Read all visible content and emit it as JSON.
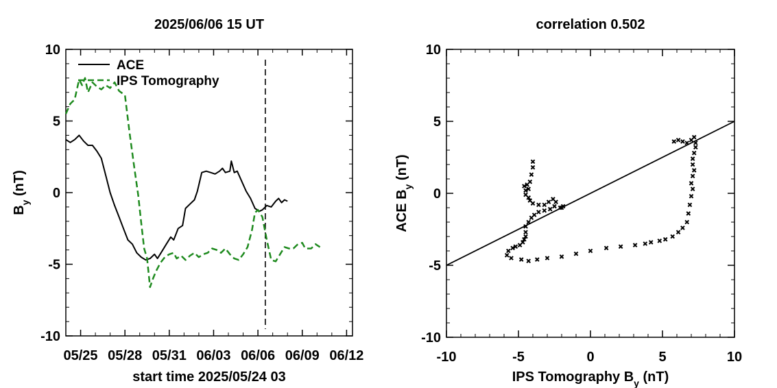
{
  "chart_data": [
    {
      "type": "line",
      "title": "2025/06/06 15 UT",
      "xlabel": "start time 2025/05/24 03",
      "ylabel_main": "B",
      "ylabel_sub": "y",
      "ylabel_tail": " (nT)",
      "xlim": [
        0,
        19.4
      ],
      "ylim": [
        -10,
        10
      ],
      "x_ticks": [
        {
          "x": 1,
          "label": "05/25"
        },
        {
          "x": 4,
          "label": "05/28"
        },
        {
          "x": 7,
          "label": "05/31"
        },
        {
          "x": 10,
          "label": "06/03"
        },
        {
          "x": 13,
          "label": "06/06"
        },
        {
          "x": 16,
          "label": "06/09"
        },
        {
          "x": 19,
          "label": "06/12"
        }
      ],
      "y_ticks": [
        -10,
        -5,
        0,
        5,
        10
      ],
      "legend": [
        "ACE",
        "IPS Tomography"
      ],
      "legend_position": "top-left",
      "vline_x": 13.5,
      "series": [
        {
          "name": "ACE",
          "style": "solid",
          "color": "#000000",
          "points": [
            [
              0,
              3.7
            ],
            [
              0.3,
              3.5
            ],
            [
              0.6,
              3.7
            ],
            [
              0.9,
              4.0
            ],
            [
              1.2,
              3.6
            ],
            [
              1.5,
              3.3
            ],
            [
              1.8,
              3.3
            ],
            [
              2.1,
              2.9
            ],
            [
              2.4,
              2.4
            ],
            [
              2.7,
              1.2
            ],
            [
              3.0,
              0.0
            ],
            [
              3.3,
              -0.9
            ],
            [
              3.6,
              -1.7
            ],
            [
              3.9,
              -2.5
            ],
            [
              4.2,
              -3.3
            ],
            [
              4.5,
              -3.6
            ],
            [
              4.8,
              -4.2
            ],
            [
              5.1,
              -4.5
            ],
            [
              5.4,
              -4.7
            ],
            [
              5.7,
              -4.6
            ],
            [
              6.0,
              -4.3
            ],
            [
              6.2,
              -4.6
            ],
            [
              6.5,
              -4.1
            ],
            [
              6.8,
              -3.6
            ],
            [
              7.1,
              -3.1
            ],
            [
              7.3,
              -3.3
            ],
            [
              7.6,
              -2.5
            ],
            [
              7.9,
              -2.3
            ],
            [
              8.1,
              -1.1
            ],
            [
              8.4,
              -0.8
            ],
            [
              8.7,
              -0.5
            ],
            [
              8.9,
              0.1
            ],
            [
              9.2,
              1.4
            ],
            [
              9.5,
              1.5
            ],
            [
              9.8,
              1.4
            ],
            [
              10.1,
              1.3
            ],
            [
              10.4,
              1.5
            ],
            [
              10.6,
              1.7
            ],
            [
              10.8,
              1.4
            ],
            [
              11.1,
              1.5
            ],
            [
              11.2,
              2.2
            ],
            [
              11.4,
              1.4
            ],
            [
              11.6,
              1.5
            ],
            [
              11.9,
              0.8
            ],
            [
              12.2,
              0.1
            ],
            [
              12.5,
              -0.4
            ],
            [
              12.8,
              -1.1
            ],
            [
              13.1,
              -1.3
            ],
            [
              13.3,
              -1.2
            ],
            [
              13.6,
              -0.9
            ],
            [
              13.9,
              -1.0
            ],
            [
              14.2,
              -0.6
            ],
            [
              14.4,
              -0.4
            ],
            [
              14.6,
              -0.7
            ],
            [
              14.8,
              -0.5
            ],
            [
              15.0,
              -0.6
            ]
          ]
        },
        {
          "name": "IPS Tomography",
          "style": "dashed",
          "color": "#1e8a1e",
          "points": [
            [
              0,
              5.5
            ],
            [
              0.3,
              6.2
            ],
            [
              0.6,
              6.5
            ],
            [
              0.9,
              7.9
            ],
            [
              1.1,
              7.5
            ],
            [
              1.3,
              8.0
            ],
            [
              1.5,
              7.0
            ],
            [
              1.8,
              7.7
            ],
            [
              2.1,
              7.4
            ],
            [
              2.4,
              7.2
            ],
            [
              2.7,
              7.5
            ],
            [
              3.0,
              7.3
            ],
            [
              3.3,
              7.7
            ],
            [
              3.6,
              7.1
            ],
            [
              4.0,
              6.8
            ],
            [
              4.3,
              4.3
            ],
            [
              4.6,
              2.0
            ],
            [
              4.9,
              -0.2
            ],
            [
              5.1,
              -2.1
            ],
            [
              5.3,
              -3.9
            ],
            [
              5.5,
              -4.6
            ],
            [
              5.7,
              -6.6
            ],
            [
              5.9,
              -6.0
            ],
            [
              6.1,
              -5.5
            ],
            [
              6.4,
              -4.9
            ],
            [
              6.7,
              -4.5
            ],
            [
              7.0,
              -4.3
            ],
            [
              7.3,
              -4.2
            ],
            [
              7.5,
              -4.6
            ],
            [
              7.8,
              -4.4
            ],
            [
              8.1,
              -4.7
            ],
            [
              8.4,
              -4.4
            ],
            [
              8.7,
              -4.2
            ],
            [
              9.0,
              -4.5
            ],
            [
              9.3,
              -4.3
            ],
            [
              9.6,
              -4.2
            ],
            [
              9.9,
              -3.9
            ],
            [
              10.2,
              -4.0
            ],
            [
              10.5,
              -4.2
            ],
            [
              10.8,
              -3.9
            ],
            [
              11.1,
              -4.3
            ],
            [
              11.4,
              -4.6
            ],
            [
              11.7,
              -4.7
            ],
            [
              12.0,
              -4.3
            ],
            [
              12.3,
              -3.8
            ],
            [
              12.6,
              -2.6
            ],
            [
              12.8,
              -1.4
            ],
            [
              13.0,
              -1.2
            ],
            [
              13.3,
              -1.7
            ],
            [
              13.6,
              -3.3
            ],
            [
              13.9,
              -4.7
            ],
            [
              14.2,
              -4.8
            ],
            [
              14.5,
              -4.3
            ],
            [
              14.8,
              -3.8
            ],
            [
              15.1,
              -3.9
            ],
            [
              15.4,
              -3.9
            ],
            [
              15.7,
              -3.6
            ],
            [
              16.0,
              -3.5
            ],
            [
              16.2,
              -3.9
            ],
            [
              16.6,
              -3.9
            ],
            [
              16.9,
              -3.6
            ],
            [
              17.2,
              -3.8
            ]
          ]
        }
      ]
    },
    {
      "type": "scatter",
      "title": "correlation 0.502",
      "xlabel_main": "IPS Tomography B",
      "xlabel_sub": "y",
      "xlabel_tail": " (nT)",
      "ylabel_main": "ACE B",
      "ylabel_sub": "y",
      "ylabel_tail": " (nT)",
      "xlim": [
        -10,
        10
      ],
      "ylim": [
        -10,
        10
      ],
      "x_ticks": [
        -10,
        -5,
        0,
        5,
        10
      ],
      "y_ticks": [
        -10,
        -5,
        0,
        5,
        10
      ],
      "marker": "x",
      "fit_line": {
        "x1": -10,
        "y1": -5,
        "x2": 10,
        "y2": 5
      },
      "points": [
        [
          5.8,
          3.6
        ],
        [
          6.1,
          3.7
        ],
        [
          6.4,
          3.6
        ],
        [
          6.7,
          3.5
        ],
        [
          7.0,
          3.7
        ],
        [
          7.2,
          3.9
        ],
        [
          7.3,
          3.5
        ],
        [
          7.3,
          3.2
        ],
        [
          7.2,
          2.8
        ],
        [
          7.1,
          2.4
        ],
        [
          7.1,
          2.0
        ],
        [
          7.2,
          1.6
        ],
        [
          7.1,
          1.2
        ],
        [
          7.0,
          0.7
        ],
        [
          7.1,
          0.3
        ],
        [
          7.0,
          -0.2
        ],
        [
          6.9,
          -0.8
        ],
        [
          6.8,
          -1.4
        ],
        [
          6.7,
          -2.0
        ],
        [
          6.4,
          -2.4
        ],
        [
          6.1,
          -2.7
        ],
        [
          5.7,
          -3.0
        ],
        [
          5.2,
          -3.2
        ],
        [
          4.8,
          -3.3
        ],
        [
          4.2,
          -3.4
        ],
        [
          3.8,
          -3.5
        ],
        [
          3.1,
          -3.6
        ],
        [
          2.1,
          -3.7
        ],
        [
          1.1,
          -3.8
        ],
        [
          0.0,
          -4.0
        ],
        [
          -1.0,
          -4.2
        ],
        [
          -2.0,
          -4.4
        ],
        [
          -3.0,
          -4.5
        ],
        [
          -3.7,
          -4.6
        ],
        [
          -4.3,
          -4.7
        ],
        [
          -4.8,
          -4.6
        ],
        [
          -5.5,
          -4.5
        ],
        [
          -5.8,
          -4.3
        ],
        [
          -5.7,
          -4.0
        ],
        [
          -5.4,
          -3.8
        ],
        [
          -5.2,
          -3.7
        ],
        [
          -4.9,
          -3.6
        ],
        [
          -4.7,
          -3.4
        ],
        [
          -4.6,
          -3.2
        ],
        [
          -4.5,
          -3.0
        ],
        [
          -4.5,
          -2.7
        ],
        [
          -4.5,
          -2.3
        ],
        [
          -4.3,
          -2.0
        ],
        [
          -4.1,
          -1.7
        ],
        [
          -3.9,
          -1.5
        ],
        [
          -3.6,
          -1.3
        ],
        [
          -3.2,
          -1.2
        ],
        [
          -2.8,
          -1.1
        ],
        [
          -2.5,
          -0.9
        ],
        [
          -2.1,
          -1.0
        ],
        [
          -1.9,
          -0.9
        ],
        [
          -2.0,
          -1.0
        ],
        [
          -2.4,
          -0.6
        ],
        [
          -2.6,
          -0.4
        ],
        [
          -2.9,
          -0.6
        ],
        [
          -3.2,
          -0.8
        ],
        [
          -3.6,
          -0.8
        ],
        [
          -4.0,
          -0.7
        ],
        [
          -4.2,
          -0.5
        ],
        [
          -4.3,
          -0.3
        ],
        [
          -4.5,
          -0.1
        ],
        [
          -4.5,
          0.2
        ],
        [
          -4.6,
          0.5
        ],
        [
          -4.4,
          0.6
        ],
        [
          -4.3,
          0.3
        ],
        [
          -4.2,
          0.8
        ],
        [
          -4.1,
          1.3
        ],
        [
          -4.0,
          1.8
        ],
        [
          -4.0,
          2.2
        ]
      ]
    }
  ]
}
